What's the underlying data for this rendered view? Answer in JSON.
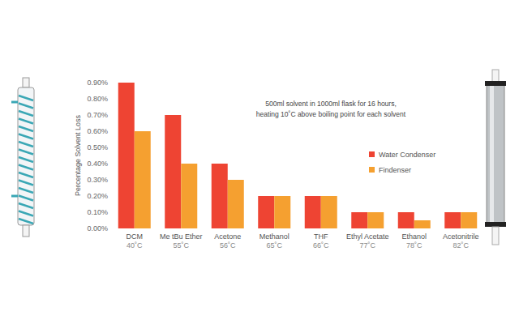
{
  "chart_data": {
    "type": "bar",
    "y_label": "Percentage Solvent Loss",
    "annotation": "500ml solvent in 1000ml flask for 16 hours,\nheating 10˚C above boiling point for each solvent",
    "categories": [
      "DCM\n40˚C",
      "Me tBu Ether\n55˚C",
      "Acetone\n56˚C",
      "Methanol\n65˚C",
      "THF\n66˚C",
      "Ethyl Acetate\n77˚C",
      "Ethanol\n78˚C",
      "Acetonitrile\n82˚C"
    ],
    "series": [
      {
        "name": "Water Condenser",
        "color": "#ee4433",
        "values": [
          0.9,
          0.7,
          0.4,
          0.2,
          0.2,
          0.1,
          0.1,
          0.1
        ]
      },
      {
        "name": "Findenser",
        "color": "#f5a030",
        "values": [
          0.6,
          0.4,
          0.3,
          0.2,
          0.2,
          0.1,
          0.05,
          0.1
        ]
      }
    ],
    "ylim": [
      0,
      0.9
    ],
    "yticks": [
      {
        "value": 0,
        "label": "0.00%"
      },
      {
        "value": 0.1,
        "label": "0.10%"
      },
      {
        "value": 0.2,
        "label": "0.20%"
      },
      {
        "value": 0.3,
        "label": "0.30%"
      },
      {
        "value": 0.4,
        "label": "0.40%"
      },
      {
        "value": 0.5,
        "label": "0.50%"
      },
      {
        "value": 0.6,
        "label": "0.60%"
      },
      {
        "value": 0.7,
        "label": "0.70%"
      },
      {
        "value": 0.8,
        "label": "0.80%"
      },
      {
        "value": 0.9,
        "label": "0.90%"
      }
    ],
    "grid": false,
    "legend": "right"
  }
}
